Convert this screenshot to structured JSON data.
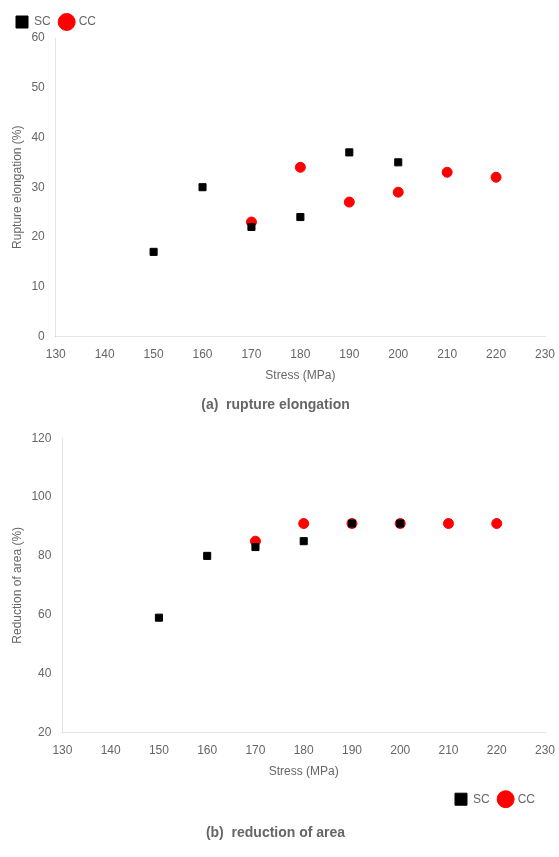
{
  "chart_data": [
    {
      "type": "scatter",
      "title": "(a)  rupture elongation",
      "x_label": "Stress (MPa)",
      "y_label": "Rupture elongation (%)",
      "series": [
        {
          "name": "SC",
          "color": "#000000",
          "marker": "square",
          "x": [
            150,
            160,
            170,
            180,
            190,
            200
          ],
          "values": [
            17,
            30,
            22,
            24,
            37,
            35
          ]
        },
        {
          "name": "CC",
          "color": "#ff0000",
          "marker": "circle",
          "x": [
            170,
            180,
            190,
            200,
            210,
            220
          ],
          "values": [
            23,
            34,
            27,
            29,
            33,
            32
          ]
        }
      ],
      "xlim": [
        130,
        230
      ],
      "xticks": [
        130,
        140,
        150,
        160,
        170,
        180,
        190,
        200,
        210,
        220,
        230
      ],
      "ylim": [
        0,
        60
      ],
      "yticks": [
        0,
        10,
        20,
        30,
        40,
        50,
        60
      ],
      "grid": false,
      "legend": "upper left"
    },
    {
      "type": "scatter",
      "title": "(b)  reduction of area",
      "x_label": "Stress (MPa)",
      "y_label": "Reduction of area (%)",
      "series": [
        {
          "name": "SC",
          "color": "#000000",
          "marker": "square",
          "x": [
            150,
            160,
            170,
            180,
            190,
            200
          ],
          "values": [
            59,
            80,
            83,
            85,
            91,
            91
          ]
        },
        {
          "name": "CC",
          "color": "#ff0000",
          "marker": "circle",
          "x": [
            170,
            180,
            190,
            200,
            210,
            220
          ],
          "values": [
            85,
            91,
            91,
            91,
            91,
            91
          ]
        }
      ],
      "xlim": [
        130,
        230
      ],
      "xticks": [
        130,
        140,
        150,
        160,
        170,
        180,
        190,
        200,
        210,
        220,
        230
      ],
      "ylim": [
        20,
        120
      ],
      "yticks": [
        20,
        40,
        60,
        80,
        100,
        120
      ],
      "grid": false,
      "legend": "lower right"
    }
  ]
}
